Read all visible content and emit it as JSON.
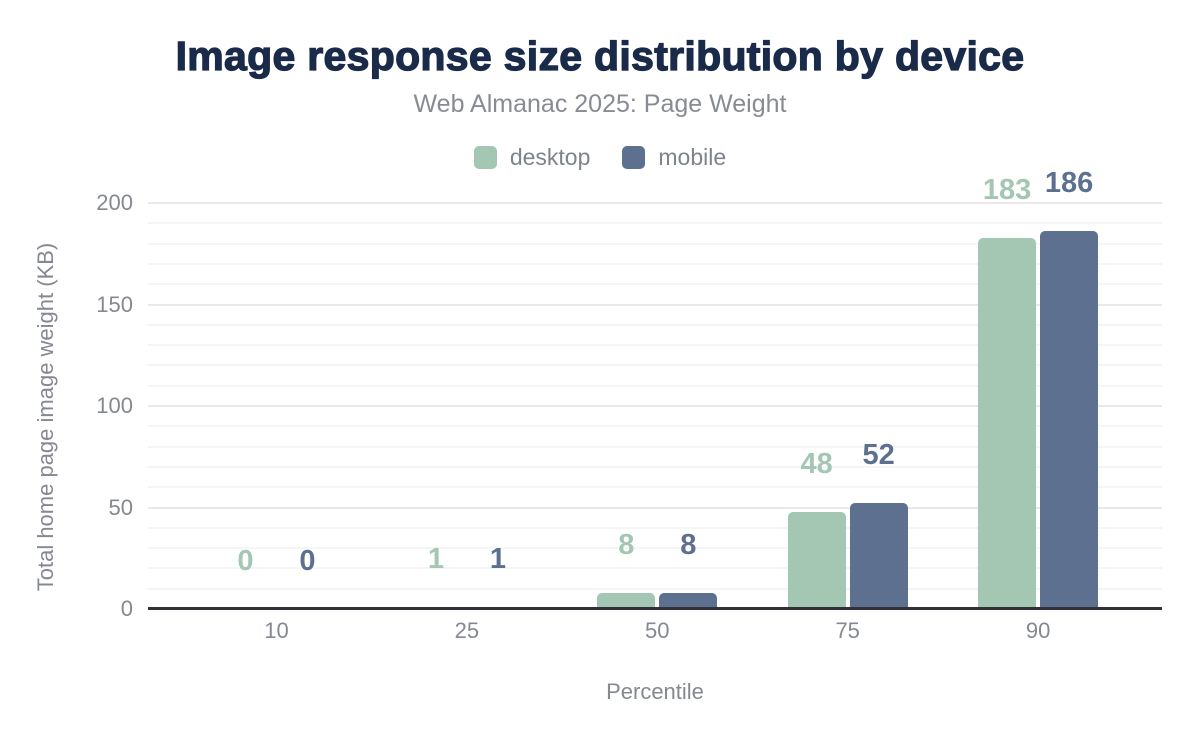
{
  "chart_data": {
    "type": "bar",
    "title": "Image response size distribution by device",
    "subtitle": "Web Almanac 2025: Page Weight",
    "categories": [
      "10",
      "25",
      "50",
      "75",
      "90"
    ],
    "series": [
      {
        "name": "desktop",
        "color": "#a4c7b4",
        "values": [
          0,
          1,
          8,
          48,
          183
        ]
      },
      {
        "name": "mobile",
        "color": "#5d7090",
        "values": [
          0,
          1,
          8,
          52,
          186
        ]
      }
    ],
    "xlabel": "Percentile",
    "ylabel": "Total home page image weight (KB)",
    "ylim": [
      0,
      200
    ],
    "yticks": [
      0,
      50,
      100,
      150,
      200
    ],
    "minor_grid_step": 10,
    "major_grid_step": 50,
    "grid": true,
    "legend_position": "top",
    "data_labels": true
  },
  "colors": {
    "title_text": "#1a2b4a",
    "subtitle_text": "#878b93",
    "legend_text": "#7e838c",
    "axis_text": "#85898f",
    "grid_minor": "#f5f5f7",
    "grid_major": "#e9e9ed",
    "axis_line": "#303137",
    "desktop": "#a4c7b4",
    "mobile": "#5d7090",
    "background": "#ffffff"
  }
}
